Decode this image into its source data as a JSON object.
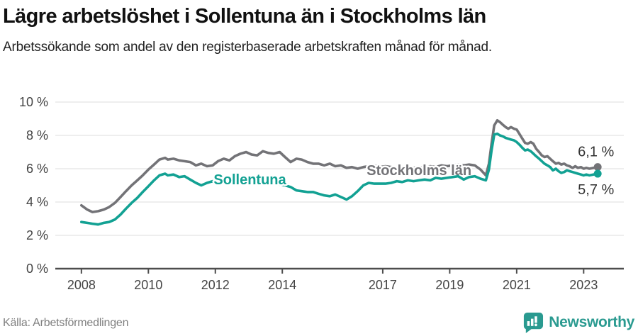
{
  "header": {
    "title": "Lägre arbetslöshet i Sollentuna än i Stockholms län",
    "subtitle": "Arbetssökande som andel av den registerbaserade arbetskraften månad för månad."
  },
  "footer": {
    "source": "Källa: Arbetsförmedlingen",
    "brand": "Newsworthy",
    "logo_icon": "bar-chart-speech-bubble-icon"
  },
  "colors": {
    "background": "#ffffff",
    "title": "#111111",
    "subtitle": "#222222",
    "grid": "#dcdcdc",
    "axis": "#4d4d4d",
    "tick_label": "#444444",
    "end_label": "#333333",
    "source": "#7f7f7f",
    "brand_teal": "#2a9a90",
    "series_stockholm": "#737377",
    "series_sollentuna": "#12a193"
  },
  "chart_data": {
    "type": "line",
    "title": "Lägre arbetslöshet i Sollentuna än i Stockholms län",
    "xlabel": "",
    "ylabel": "",
    "unit": "%",
    "grid": "horizontal",
    "legend_position": "inline-labels",
    "xlim": [
      2007.22,
      2024.2
    ],
    "ylim": [
      0,
      10
    ],
    "x_ticks": [
      2008,
      2010,
      2012,
      2014,
      2017,
      2019,
      2021,
      2023
    ],
    "x_tick_labels": [
      "2008",
      "2010",
      "2012",
      "2014",
      "2017",
      "2019",
      "2021",
      "2023"
    ],
    "y_ticks": [
      0,
      2,
      4,
      6,
      8,
      10
    ],
    "y_tick_labels": [
      "0 %",
      "2 %",
      "4 %",
      "6 %",
      "8 %",
      "10 %"
    ],
    "series": [
      {
        "name": "Stockholms län",
        "color": "#737377",
        "end_label": "6,1 %",
        "end_value": 6.1,
        "label_anchor": [
          2016.52,
          5.62
        ],
        "points": [
          [
            2008.0,
            3.8
          ],
          [
            2008.17,
            3.55
          ],
          [
            2008.33,
            3.4
          ],
          [
            2008.5,
            3.45
          ],
          [
            2008.67,
            3.55
          ],
          [
            2008.83,
            3.7
          ],
          [
            2009.0,
            3.95
          ],
          [
            2009.17,
            4.3
          ],
          [
            2009.33,
            4.65
          ],
          [
            2009.5,
            5.0
          ],
          [
            2009.67,
            5.3
          ],
          [
            2009.83,
            5.6
          ],
          [
            2010.0,
            5.95
          ],
          [
            2010.17,
            6.25
          ],
          [
            2010.33,
            6.55
          ],
          [
            2010.5,
            6.65
          ],
          [
            2010.58,
            6.55
          ],
          [
            2010.75,
            6.6
          ],
          [
            2010.92,
            6.5
          ],
          [
            2011.08,
            6.45
          ],
          [
            2011.25,
            6.4
          ],
          [
            2011.42,
            6.2
          ],
          [
            2011.58,
            6.3
          ],
          [
            2011.75,
            6.15
          ],
          [
            2011.92,
            6.2
          ],
          [
            2012.08,
            6.45
          ],
          [
            2012.25,
            6.6
          ],
          [
            2012.42,
            6.5
          ],
          [
            2012.58,
            6.75
          ],
          [
            2012.75,
            6.9
          ],
          [
            2012.92,
            7.0
          ],
          [
            2013.08,
            6.85
          ],
          [
            2013.25,
            6.8
          ],
          [
            2013.42,
            7.05
          ],
          [
            2013.58,
            6.95
          ],
          [
            2013.75,
            6.9
          ],
          [
            2013.92,
            7.0
          ],
          [
            2014.08,
            6.7
          ],
          [
            2014.25,
            6.4
          ],
          [
            2014.42,
            6.6
          ],
          [
            2014.58,
            6.55
          ],
          [
            2014.75,
            6.4
          ],
          [
            2014.92,
            6.3
          ],
          [
            2015.08,
            6.3
          ],
          [
            2015.25,
            6.2
          ],
          [
            2015.42,
            6.3
          ],
          [
            2015.58,
            6.15
          ],
          [
            2015.75,
            6.2
          ],
          [
            2015.92,
            6.05
          ],
          [
            2016.08,
            6.1
          ],
          [
            2016.25,
            6.0
          ],
          [
            2016.42,
            6.1
          ],
          [
            2016.58,
            6.15
          ],
          [
            2016.75,
            6.2
          ],
          [
            2016.92,
            6.1
          ],
          [
            2017.08,
            6.15
          ],
          [
            2017.25,
            6.1
          ],
          [
            2017.42,
            6.05
          ],
          [
            2017.58,
            6.1
          ],
          [
            2017.75,
            6.0
          ],
          [
            2017.92,
            6.05
          ],
          [
            2018.08,
            6.1
          ],
          [
            2018.25,
            6.05
          ],
          [
            2018.42,
            6.15
          ],
          [
            2018.58,
            6.1
          ],
          [
            2018.75,
            6.2
          ],
          [
            2018.92,
            6.15
          ],
          [
            2019.08,
            6.2
          ],
          [
            2019.25,
            6.25
          ],
          [
            2019.42,
            6.2
          ],
          [
            2019.58,
            6.25
          ],
          [
            2019.75,
            6.2
          ],
          [
            2019.92,
            5.95
          ],
          [
            2020.08,
            5.6
          ],
          [
            2020.17,
            6.3
          ],
          [
            2020.25,
            7.5
          ],
          [
            2020.33,
            8.6
          ],
          [
            2020.42,
            8.9
          ],
          [
            2020.5,
            8.8
          ],
          [
            2020.58,
            8.65
          ],
          [
            2020.67,
            8.5
          ],
          [
            2020.75,
            8.4
          ],
          [
            2020.83,
            8.5
          ],
          [
            2020.92,
            8.4
          ],
          [
            2021.0,
            8.35
          ],
          [
            2021.08,
            8.1
          ],
          [
            2021.17,
            7.8
          ],
          [
            2021.25,
            7.55
          ],
          [
            2021.33,
            7.5
          ],
          [
            2021.42,
            7.6
          ],
          [
            2021.5,
            7.5
          ],
          [
            2021.58,
            7.2
          ],
          [
            2021.67,
            7.0
          ],
          [
            2021.75,
            6.8
          ],
          [
            2021.83,
            6.7
          ],
          [
            2021.92,
            6.75
          ],
          [
            2022.0,
            6.6
          ],
          [
            2022.08,
            6.45
          ],
          [
            2022.17,
            6.3
          ],
          [
            2022.25,
            6.35
          ],
          [
            2022.33,
            6.25
          ],
          [
            2022.42,
            6.3
          ],
          [
            2022.5,
            6.2
          ],
          [
            2022.58,
            6.15
          ],
          [
            2022.67,
            6.05
          ],
          [
            2022.75,
            6.15
          ],
          [
            2022.83,
            6.05
          ],
          [
            2022.92,
            6.1
          ],
          [
            2023.0,
            6.0
          ],
          [
            2023.08,
            6.05
          ],
          [
            2023.17,
            6.0
          ],
          [
            2023.42,
            6.1
          ]
        ]
      },
      {
        "name": "Sollentuna",
        "color": "#12a193",
        "end_label": "5,7 %",
        "end_value": 5.7,
        "label_anchor": [
          2011.95,
          5.06
        ],
        "points": [
          [
            2008.0,
            2.8
          ],
          [
            2008.17,
            2.75
          ],
          [
            2008.33,
            2.7
          ],
          [
            2008.5,
            2.65
          ],
          [
            2008.67,
            2.75
          ],
          [
            2008.83,
            2.8
          ],
          [
            2009.0,
            2.95
          ],
          [
            2009.17,
            3.25
          ],
          [
            2009.33,
            3.6
          ],
          [
            2009.5,
            3.95
          ],
          [
            2009.67,
            4.25
          ],
          [
            2009.83,
            4.6
          ],
          [
            2010.0,
            4.95
          ],
          [
            2010.17,
            5.3
          ],
          [
            2010.33,
            5.6
          ],
          [
            2010.5,
            5.7
          ],
          [
            2010.58,
            5.6
          ],
          [
            2010.75,
            5.65
          ],
          [
            2010.92,
            5.5
          ],
          [
            2011.08,
            5.55
          ],
          [
            2011.25,
            5.35
          ],
          [
            2011.42,
            5.15
          ],
          [
            2011.58,
            5.0
          ],
          [
            2011.75,
            5.15
          ],
          [
            2011.92,
            5.25
          ],
          [
            2012.08,
            5.15
          ],
          [
            2012.25,
            5.25
          ],
          [
            2012.42,
            5.2
          ],
          [
            2012.58,
            5.3
          ],
          [
            2012.75,
            5.25
          ],
          [
            2012.92,
            5.2
          ],
          [
            2013.08,
            5.3
          ],
          [
            2013.25,
            5.25
          ],
          [
            2013.42,
            5.3
          ],
          [
            2013.58,
            5.2
          ],
          [
            2013.75,
            5.15
          ],
          [
            2013.92,
            5.05
          ],
          [
            2014.08,
            5.0
          ],
          [
            2014.25,
            4.9
          ],
          [
            2014.42,
            4.7
          ],
          [
            2014.58,
            4.65
          ],
          [
            2014.75,
            4.6
          ],
          [
            2014.92,
            4.6
          ],
          [
            2015.08,
            4.5
          ],
          [
            2015.25,
            4.4
          ],
          [
            2015.42,
            4.35
          ],
          [
            2015.58,
            4.45
          ],
          [
            2015.75,
            4.3
          ],
          [
            2015.92,
            4.15
          ],
          [
            2016.08,
            4.35
          ],
          [
            2016.25,
            4.65
          ],
          [
            2016.42,
            5.0
          ],
          [
            2016.58,
            5.15
          ],
          [
            2016.75,
            5.1
          ],
          [
            2016.92,
            5.1
          ],
          [
            2017.08,
            5.1
          ],
          [
            2017.25,
            5.15
          ],
          [
            2017.42,
            5.25
          ],
          [
            2017.58,
            5.2
          ],
          [
            2017.75,
            5.3
          ],
          [
            2017.92,
            5.25
          ],
          [
            2018.08,
            5.3
          ],
          [
            2018.25,
            5.35
          ],
          [
            2018.42,
            5.3
          ],
          [
            2018.58,
            5.45
          ],
          [
            2018.75,
            5.4
          ],
          [
            2018.92,
            5.45
          ],
          [
            2019.08,
            5.5
          ],
          [
            2019.25,
            5.55
          ],
          [
            2019.42,
            5.35
          ],
          [
            2019.58,
            5.5
          ],
          [
            2019.75,
            5.55
          ],
          [
            2019.92,
            5.4
          ],
          [
            2020.08,
            5.3
          ],
          [
            2020.17,
            5.95
          ],
          [
            2020.25,
            7.1
          ],
          [
            2020.33,
            8.05
          ],
          [
            2020.42,
            8.1
          ],
          [
            2020.5,
            8.0
          ],
          [
            2020.58,
            7.95
          ],
          [
            2020.67,
            7.85
          ],
          [
            2020.75,
            7.8
          ],
          [
            2020.83,
            7.75
          ],
          [
            2020.92,
            7.7
          ],
          [
            2021.0,
            7.6
          ],
          [
            2021.08,
            7.45
          ],
          [
            2021.17,
            7.25
          ],
          [
            2021.25,
            7.1
          ],
          [
            2021.33,
            7.15
          ],
          [
            2021.42,
            7.05
          ],
          [
            2021.5,
            6.9
          ],
          [
            2021.58,
            6.75
          ],
          [
            2021.67,
            6.6
          ],
          [
            2021.75,
            6.45
          ],
          [
            2021.83,
            6.3
          ],
          [
            2021.92,
            6.2
          ],
          [
            2022.0,
            6.1
          ],
          [
            2022.08,
            5.9
          ],
          [
            2022.17,
            6.0
          ],
          [
            2022.25,
            5.85
          ],
          [
            2022.33,
            5.75
          ],
          [
            2022.42,
            5.8
          ],
          [
            2022.5,
            5.9
          ],
          [
            2022.58,
            5.85
          ],
          [
            2022.67,
            5.8
          ],
          [
            2022.75,
            5.75
          ],
          [
            2022.83,
            5.7
          ],
          [
            2022.92,
            5.65
          ],
          [
            2023.0,
            5.6
          ],
          [
            2023.08,
            5.65
          ],
          [
            2023.17,
            5.6
          ],
          [
            2023.42,
            5.7
          ]
        ]
      }
    ]
  }
}
